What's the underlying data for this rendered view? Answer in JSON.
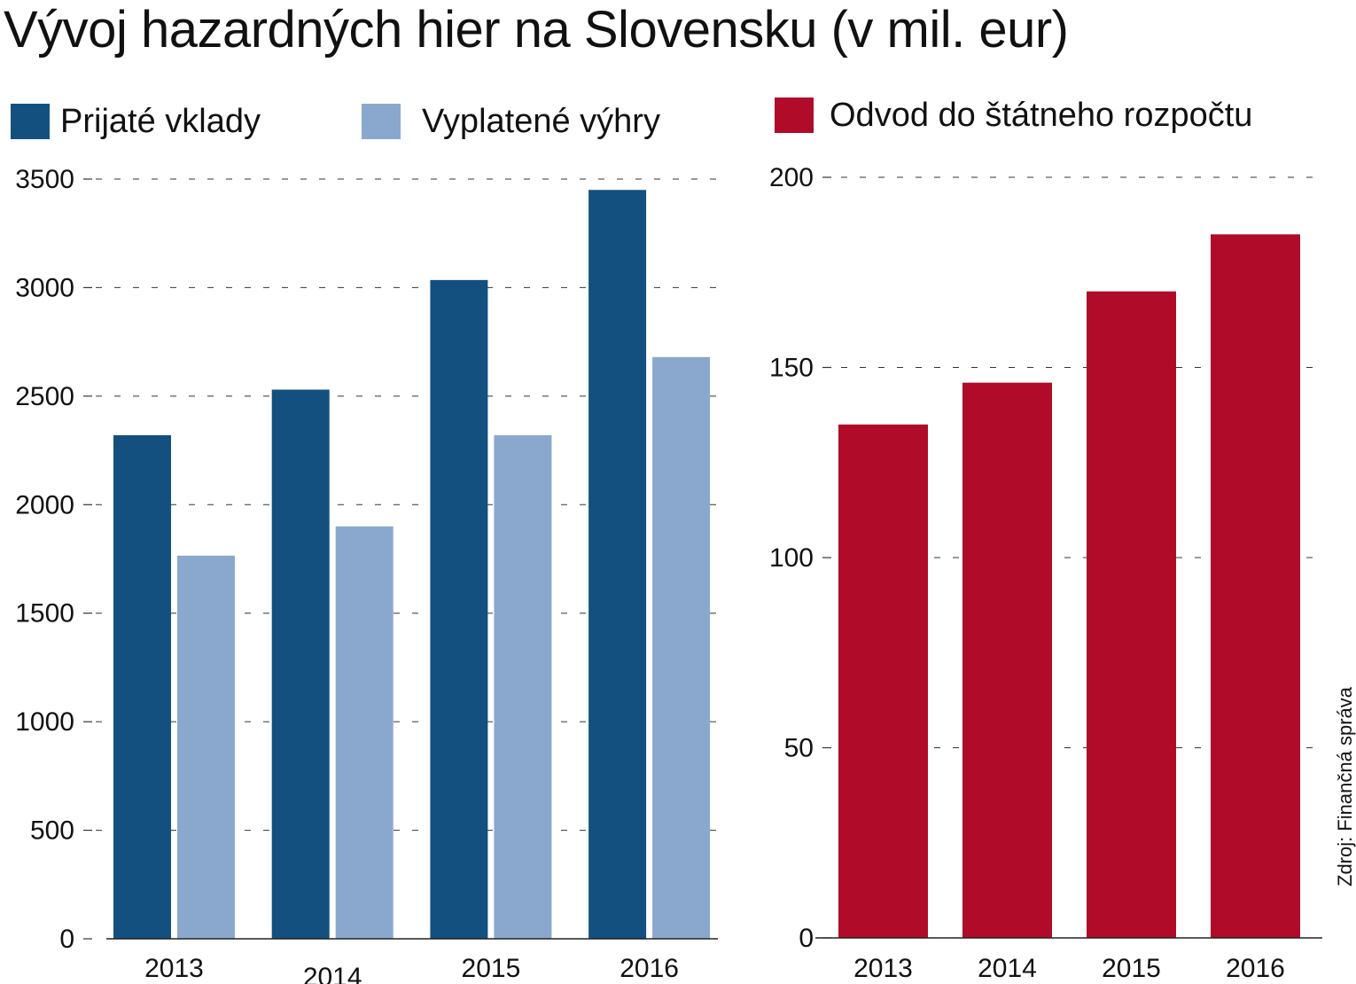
{
  "title": "Vývoj hazardných hier na Slovensku (v mil. eur)",
  "colors": {
    "deposits": "#14507f",
    "payouts": "#8aa8cd",
    "state_budget": "#b00c29",
    "grid": "#333333"
  },
  "source": "Zdroj: Finančná správa",
  "chart_data": [
    {
      "type": "bar",
      "categories": [
        "2013",
        "2014",
        "2015",
        "2016"
      ],
      "series": [
        {
          "name": "Prijaté vklady",
          "values": [
            2320,
            2530,
            3035,
            3450
          ]
        },
        {
          "name": "Vyplatené výhry",
          "values": [
            1765,
            1900,
            2320,
            2680
          ]
        }
      ],
      "yticks": [
        "0",
        "500",
        "1000",
        "1500",
        "2000",
        "2500",
        "3000",
        "3500"
      ],
      "ylim": [
        0,
        3500
      ],
      "grid": true,
      "legend": "top-left",
      "xlabel": "",
      "ylabel": ""
    },
    {
      "type": "bar",
      "categories": [
        "2013",
        "2014",
        "2015",
        "2016"
      ],
      "series": [
        {
          "name": "Odvod do štátneho rozpočtu",
          "values": [
            135,
            146,
            170,
            185
          ]
        }
      ],
      "yticks": [
        "0",
        "50",
        "100",
        "150",
        "200"
      ],
      "ylim": [
        0,
        200
      ],
      "grid": true,
      "legend": "top-left",
      "xlabel": "",
      "ylabel": ""
    }
  ]
}
